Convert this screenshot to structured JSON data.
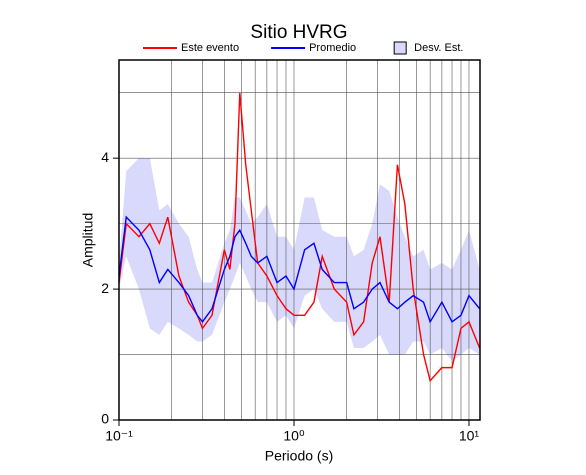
{
  "chart_data": {
    "type": "line",
    "title": "Sitio HVRG",
    "x_label": "Periodo (s)",
    "y_label": "Amplitud",
    "x_scale": "log",
    "grid": true,
    "legend": "top",
    "xlim": [
      0.1,
      11.56
    ],
    "ylim": [
      0,
      5.5
    ],
    "xticks": [
      {
        "value": 0.1,
        "label": "10⁻¹"
      },
      {
        "value": 1,
        "label": "10⁰"
      },
      {
        "value": 10,
        "label": "10¹"
      }
    ],
    "xminor": [
      0.2,
      0.3,
      0.4,
      0.5,
      0.6,
      0.7,
      0.8,
      0.9,
      2,
      3,
      4,
      5,
      6,
      7,
      8,
      9
    ],
    "yticks": [
      0,
      2,
      4
    ],
    "yminor": [
      1,
      3,
      5
    ],
    "x": [
      0.1,
      0.11,
      0.13,
      0.15,
      0.17,
      0.19,
      0.22,
      0.25,
      0.28,
      0.3,
      0.34,
      0.4,
      0.43,
      0.46,
      0.49,
      0.53,
      0.57,
      0.62,
      0.7,
      0.8,
      0.9,
      1.0,
      1.15,
      1.3,
      1.45,
      1.7,
      2.0,
      2.2,
      2.5,
      2.8,
      3.1,
      3.5,
      3.9,
      4.3,
      4.8,
      5.5,
      6.0,
      7.0,
      8.0,
      9.0,
      10,
      11.5
    ],
    "band": {
      "name": "Desv. Est.",
      "color": "#d9d9fb",
      "upper": [
        2.4,
        3.8,
        4.0,
        4.0,
        3.2,
        3.3,
        3.0,
        2.8,
        2.3,
        2.1,
        2.1,
        2.7,
        2.9,
        3.4,
        3.4,
        3.2,
        3.0,
        3.1,
        3.3,
        2.8,
        2.8,
        2.6,
        3.4,
        3.4,
        2.9,
        2.8,
        2.8,
        2.5,
        2.6,
        3.0,
        3.6,
        3.5,
        3.1,
        2.8,
        2.5,
        2.6,
        2.3,
        2.4,
        2.3,
        2.6,
        2.9,
        2.3
      ],
      "lower": [
        2.0,
        2.5,
        2.0,
        1.4,
        1.3,
        1.5,
        1.4,
        1.3,
        1.2,
        1.2,
        1.3,
        1.8,
        2.0,
        2.2,
        2.4,
        2.2,
        2.0,
        1.8,
        1.8,
        1.5,
        1.6,
        1.4,
        1.9,
        2.0,
        1.7,
        1.5,
        1.5,
        1.1,
        1.1,
        1.2,
        1.3,
        1.0,
        1.0,
        1.0,
        1.2,
        1.2,
        1.0,
        1.1,
        0.9,
        1.0,
        1.1,
        1.0
      ]
    },
    "series": [
      {
        "name": "Este evento",
        "color": "#ff0000",
        "values": [
          2.1,
          3.0,
          2.8,
          3.0,
          2.7,
          3.1,
          2.2,
          1.8,
          1.6,
          1.4,
          1.6,
          2.6,
          2.3,
          3.0,
          5.0,
          3.9,
          3.2,
          2.4,
          2.2,
          1.9,
          1.7,
          1.6,
          1.6,
          1.8,
          2.5,
          2.0,
          1.8,
          1.3,
          1.5,
          2.4,
          2.8,
          1.8,
          3.9,
          3.3,
          2.0,
          1.0,
          0.6,
          0.8,
          0.8,
          1.4,
          1.5,
          1.1
        ]
      },
      {
        "name": "Promedio",
        "color": "#0000ff",
        "values": [
          2.2,
          3.1,
          2.9,
          2.6,
          2.1,
          2.3,
          2.1,
          1.9,
          1.6,
          1.5,
          1.7,
          2.3,
          2.5,
          2.8,
          2.9,
          2.7,
          2.5,
          2.4,
          2.5,
          2.1,
          2.2,
          2.0,
          2.6,
          2.7,
          2.3,
          2.1,
          2.1,
          1.7,
          1.8,
          2.0,
          2.1,
          1.8,
          1.7,
          1.8,
          1.9,
          1.8,
          1.5,
          1.8,
          1.5,
          1.6,
          1.9,
          1.7
        ]
      }
    ]
  }
}
